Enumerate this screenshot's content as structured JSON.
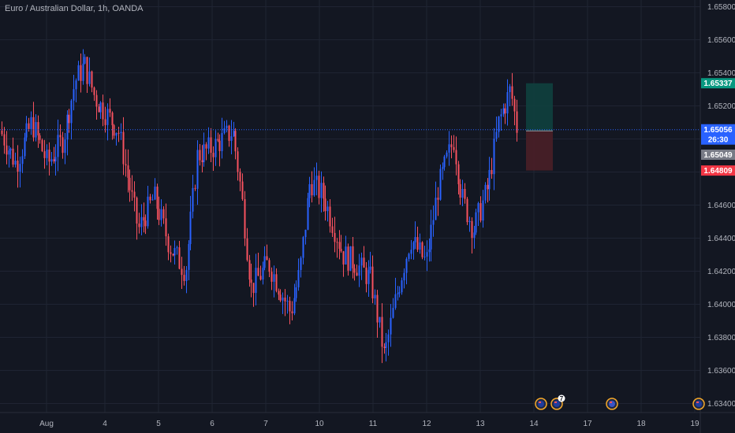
{
  "title": "Euro / Australian Dollar, 1h, OANDA",
  "colors": {
    "background": "#131722",
    "grid": "#1f2433",
    "up": "#2962ff",
    "down": "#f7525f",
    "axis_text": "#b2b5be",
    "last_price": "#2962ff",
    "target": "#089981",
    "stop": "#f23645",
    "profit_zone": "#10403e",
    "loss_zone": "#4a1f27",
    "entry_tag": "#787b86"
  },
  "y_axis": {
    "min": 1.634,
    "max": 1.658,
    "ticks": [
      "1.65800",
      "1.65600",
      "1.65400",
      "1.65200",
      "1.65000",
      "1.64800",
      "1.64600",
      "1.64400",
      "1.64200",
      "1.64000",
      "1.63800",
      "1.63600",
      "1.63400"
    ]
  },
  "x_axis": {
    "labels": [
      "Aug",
      "4",
      "5",
      "6",
      "7",
      "10",
      "11",
      "12",
      "13",
      "14",
      "17",
      "18",
      "19"
    ]
  },
  "price_tags": {
    "target": "1.65337",
    "current": "1.65056",
    "countdown": "26:30",
    "entry": "1.65049",
    "stop": "1.64809"
  },
  "events": [
    {
      "icon": "au-flag-icon",
      "badge": ""
    },
    {
      "icon": "au-flag-icon",
      "badge": "7"
    },
    {
      "icon": "eu-flag-icon",
      "badge": ""
    },
    {
      "icon": "au-flag-icon",
      "badge": ""
    }
  ],
  "chart_data": {
    "type": "candlestick",
    "symbol": "Euro / Australian Dollar",
    "interval": "1h",
    "source": "OANDA",
    "x_categories": [
      "Aug",
      "4",
      "5",
      "6",
      "7",
      "10",
      "11",
      "12",
      "13",
      "14",
      "17",
      "18",
      "19"
    ],
    "ylim": [
      1.634,
      1.658
    ],
    "trend_close": [
      {
        "x": "Aug",
        "close": 1.6495
      },
      {
        "x": "4",
        "close": 1.6535
      },
      {
        "x": "5",
        "close": 1.644
      },
      {
        "x": "6",
        "close": 1.65
      },
      {
        "x": "7",
        "close": 1.6405
      },
      {
        "x": "10",
        "close": 1.646
      },
      {
        "x": "11",
        "close": 1.637
      },
      {
        "x": "12",
        "close": 1.646
      },
      {
        "x": "13",
        "close": 1.6505
      }
    ],
    "last_price": 1.65056,
    "position": {
      "entry": 1.65049,
      "target": 1.65337,
      "stop": 1.64809
    }
  }
}
